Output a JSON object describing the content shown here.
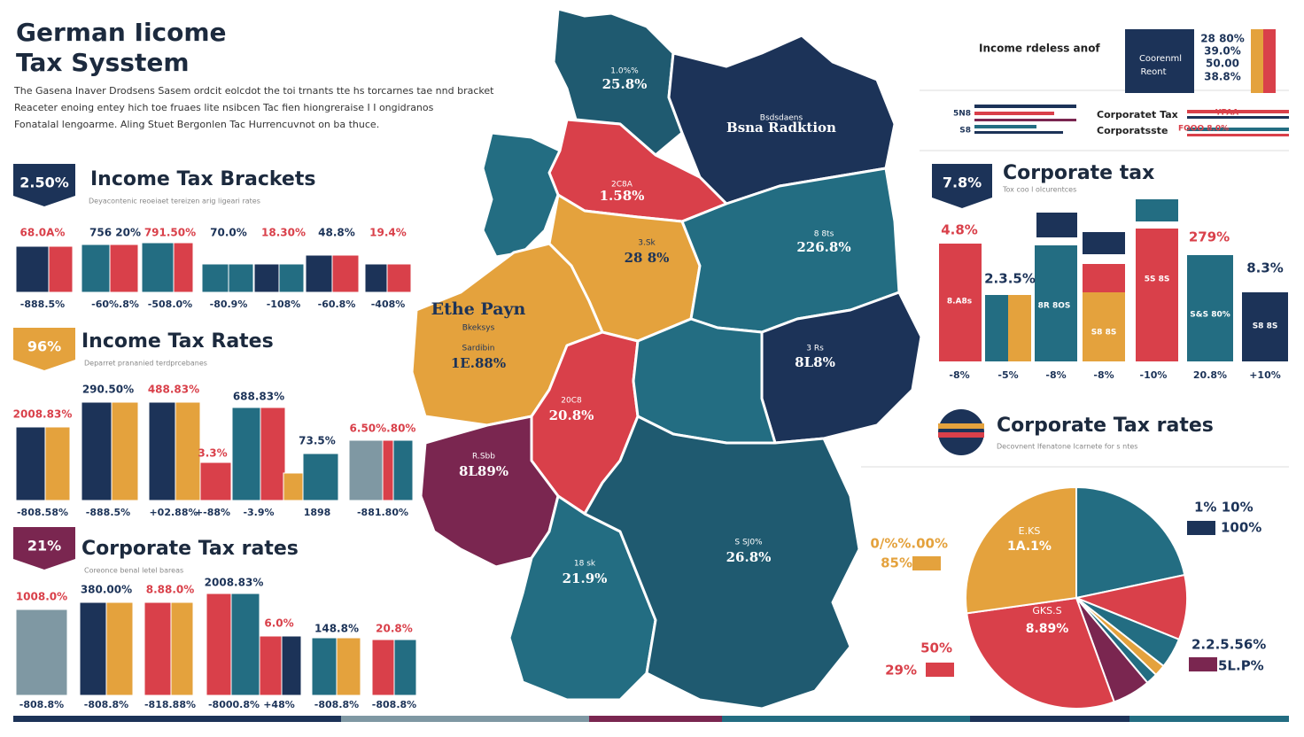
{
  "header": {
    "title_lines": [
      "German Iicome",
      "Tax Sysstem"
    ],
    "description": [
      "The Gasena Inaver Drodsens Sasem ordcit eolcdot the toi trnants tte hs torcarnes tae nnd bracket",
      "Reaceter enoing entey hich toe fruaes lite nsibcen Tac fien hiongreraise I I ongidranos",
      "Fonatalal lengoarme. Aling Stuet Bergonlen Tac Hurrencuvnot on ba thuce."
    ]
  },
  "panels": [
    {
      "badge": "2.50%",
      "title": "Income Tax Brackets",
      "subtitle": "Deyacontenic reoeiaet tereizen arig ligeari rates",
      "top_labels": [
        "68.0A%",
        "756 20%",
        "791.50%",
        "70.0%",
        "18.30%",
        "48.8%",
        "19.4%"
      ],
      "bottom_labels": [
        "-888.5%",
        "-60%.8%",
        "-508.0%",
        "-80.9%",
        "-108%",
        "-60.8%",
        "-408%"
      ]
    },
    {
      "badge": "96%",
      "title": "Income Tax Rates",
      "subtitle": "Deparret prananied terdprcebanes",
      "top_labels": [
        "2008.83%",
        "290.50%",
        "488.83%",
        "688.83%",
        "3.3%",
        "73.5%",
        "6.50%.80%"
      ],
      "bottom_labels": [
        "-808.58%",
        "-888.5%",
        "+02.88%",
        "-3.9%",
        "+-88%",
        "1898",
        "-881.80%"
      ]
    },
    {
      "badge": "21%",
      "title": "Corporate Tax rates",
      "subtitle": "Coreonce benal letel bareas",
      "top_labels": [
        "1008.0%",
        "380.00%",
        "8.88.0%",
        "2008.83%",
        "6.0%",
        "148.8%",
        "20.8%"
      ],
      "bottom_labels": [
        "-808.8%",
        "-808.8%",
        "-818.88%",
        "-8000.8%",
        "+48%",
        "-808.8%",
        "-808.8%"
      ]
    }
  ],
  "map": {
    "regions": [
      {
        "labels": [
          "1.0%%",
          "25.8%"
        ]
      },
      {
        "labels": [
          "Bsdsdaens",
          "Bsna Radktion"
        ]
      },
      {
        "labels": [
          "2C8A",
          "1.58%"
        ]
      },
      {
        "labels": []
      },
      {
        "labels": [
          "3.Sk",
          "28 8%"
        ]
      },
      {
        "labels": [
          "8 8ts",
          "226.8%"
        ]
      },
      {
        "labels": [
          "3 Rs",
          "8L8%"
        ]
      },
      {
        "labels": [
          "Ethe Payn",
          "Bkeksys",
          "Sardibin",
          "1E.88%"
        ]
      },
      {
        "labels": [
          "20C8",
          "20.8%"
        ]
      },
      {
        "labels": []
      },
      {
        "labels": [
          "R.Sbb",
          "8L89%"
        ]
      },
      {
        "labels": [
          "18 sk",
          "21.9%"
        ]
      },
      {
        "labels": [
          "S SJ0%",
          "26.8%"
        ]
      }
    ]
  },
  "legend_top": {
    "title": "Income rdeless anof",
    "box_lines": [
      "Coorenml",
      "Reont"
    ],
    "values": [
      "28 80%",
      "39.0%",
      "50.00",
      "38.8%"
    ],
    "small_labels": [
      "5N8",
      "S8"
    ],
    "rows": [
      "Corporatet Tax",
      "Corporatsste"
    ],
    "row_values": [
      "YPAA",
      "FOOO 8.0%"
    ]
  },
  "corporate_tax": {
    "badge": "7.8%",
    "title": "Corporate tax",
    "subtitle": "Tox coo l olcurentces",
    "top_labels": [
      "4.8%",
      "2.3.5%",
      "279%",
      "8.3%"
    ],
    "inner_labels": [
      "8.A8s",
      "8R 8OS",
      "S8 8S",
      "5S 8S",
      "S&S 80%",
      "S8 8S"
    ],
    "bottom_labels": [
      "-8%",
      "-5%",
      "-8%",
      "-8%",
      "-10%",
      "20.8%",
      "+10%"
    ]
  },
  "pie_section": {
    "title": "Corporate Tax rates",
    "subtitle": "Decovnent Ifenatone Icarnete for s ntes",
    "slice_labels": [
      [
        "E.KS",
        "1A.1%"
      ],
      [
        "GKS.S",
        "8.89%"
      ]
    ],
    "legend": [
      [
        "1% 10%",
        "100%"
      ],
      [
        "0/%%.00%",
        "85%"
      ],
      [
        "50%",
        "29%"
      ],
      [
        "2.2.5.56%",
        "5L.P%"
      ]
    ]
  }
}
